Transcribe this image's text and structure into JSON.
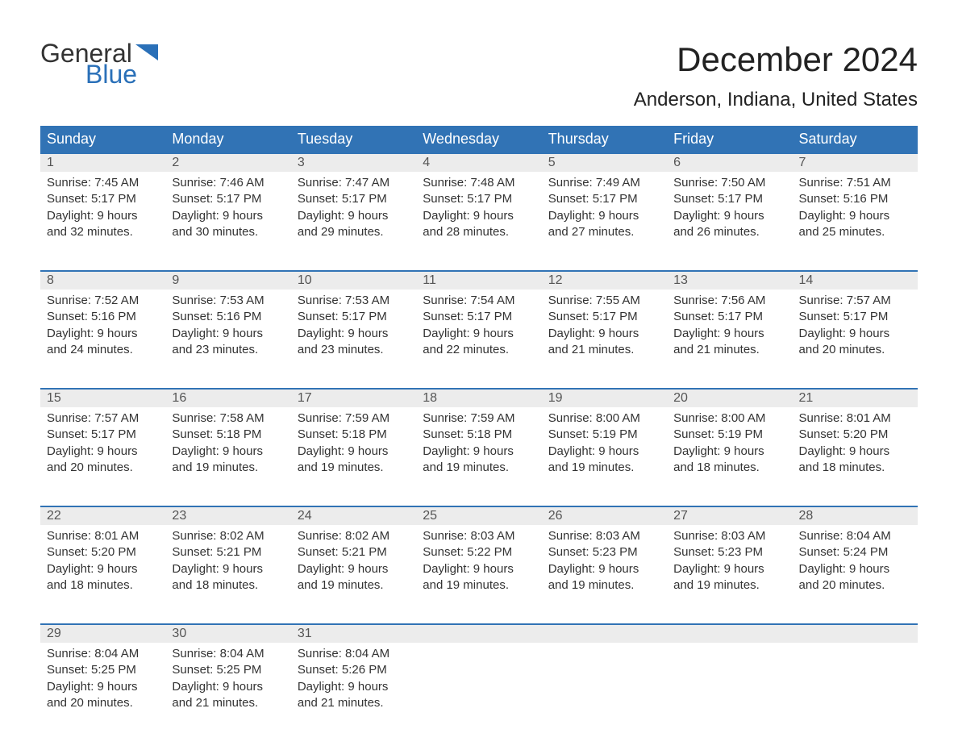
{
  "logo": {
    "text_top": "General",
    "text_bottom": "Blue",
    "flag_color": "#2a70b8"
  },
  "title": "December 2024",
  "location": "Anderson, Indiana, United States",
  "colors": {
    "header_bg": "#3173b5",
    "header_text": "#ffffff",
    "daynum_bg": "#ececec",
    "daynum_border": "#3173b5",
    "body_text": "#333333",
    "page_bg": "#ffffff",
    "logo_blue": "#2a70b8"
  },
  "typography": {
    "title_fontsize": 42,
    "location_fontsize": 24,
    "header_fontsize": 18,
    "daynum_fontsize": 16,
    "body_fontsize": 15
  },
  "day_headers": [
    "Sunday",
    "Monday",
    "Tuesday",
    "Wednesday",
    "Thursday",
    "Friday",
    "Saturday"
  ],
  "weeks": [
    [
      {
        "n": "1",
        "sr": "Sunrise: 7:45 AM",
        "ss": "Sunset: 5:17 PM",
        "dl1": "Daylight: 9 hours",
        "dl2": "and 32 minutes."
      },
      {
        "n": "2",
        "sr": "Sunrise: 7:46 AM",
        "ss": "Sunset: 5:17 PM",
        "dl1": "Daylight: 9 hours",
        "dl2": "and 30 minutes."
      },
      {
        "n": "3",
        "sr": "Sunrise: 7:47 AM",
        "ss": "Sunset: 5:17 PM",
        "dl1": "Daylight: 9 hours",
        "dl2": "and 29 minutes."
      },
      {
        "n": "4",
        "sr": "Sunrise: 7:48 AM",
        "ss": "Sunset: 5:17 PM",
        "dl1": "Daylight: 9 hours",
        "dl2": "and 28 minutes."
      },
      {
        "n": "5",
        "sr": "Sunrise: 7:49 AM",
        "ss": "Sunset: 5:17 PM",
        "dl1": "Daylight: 9 hours",
        "dl2": "and 27 minutes."
      },
      {
        "n": "6",
        "sr": "Sunrise: 7:50 AM",
        "ss": "Sunset: 5:17 PM",
        "dl1": "Daylight: 9 hours",
        "dl2": "and 26 minutes."
      },
      {
        "n": "7",
        "sr": "Sunrise: 7:51 AM",
        "ss": "Sunset: 5:16 PM",
        "dl1": "Daylight: 9 hours",
        "dl2": "and 25 minutes."
      }
    ],
    [
      {
        "n": "8",
        "sr": "Sunrise: 7:52 AM",
        "ss": "Sunset: 5:16 PM",
        "dl1": "Daylight: 9 hours",
        "dl2": "and 24 minutes."
      },
      {
        "n": "9",
        "sr": "Sunrise: 7:53 AM",
        "ss": "Sunset: 5:16 PM",
        "dl1": "Daylight: 9 hours",
        "dl2": "and 23 minutes."
      },
      {
        "n": "10",
        "sr": "Sunrise: 7:53 AM",
        "ss": "Sunset: 5:17 PM",
        "dl1": "Daylight: 9 hours",
        "dl2": "and 23 minutes."
      },
      {
        "n": "11",
        "sr": "Sunrise: 7:54 AM",
        "ss": "Sunset: 5:17 PM",
        "dl1": "Daylight: 9 hours",
        "dl2": "and 22 minutes."
      },
      {
        "n": "12",
        "sr": "Sunrise: 7:55 AM",
        "ss": "Sunset: 5:17 PM",
        "dl1": "Daylight: 9 hours",
        "dl2": "and 21 minutes."
      },
      {
        "n": "13",
        "sr": "Sunrise: 7:56 AM",
        "ss": "Sunset: 5:17 PM",
        "dl1": "Daylight: 9 hours",
        "dl2": "and 21 minutes."
      },
      {
        "n": "14",
        "sr": "Sunrise: 7:57 AM",
        "ss": "Sunset: 5:17 PM",
        "dl1": "Daylight: 9 hours",
        "dl2": "and 20 minutes."
      }
    ],
    [
      {
        "n": "15",
        "sr": "Sunrise: 7:57 AM",
        "ss": "Sunset: 5:17 PM",
        "dl1": "Daylight: 9 hours",
        "dl2": "and 20 minutes."
      },
      {
        "n": "16",
        "sr": "Sunrise: 7:58 AM",
        "ss": "Sunset: 5:18 PM",
        "dl1": "Daylight: 9 hours",
        "dl2": "and 19 minutes."
      },
      {
        "n": "17",
        "sr": "Sunrise: 7:59 AM",
        "ss": "Sunset: 5:18 PM",
        "dl1": "Daylight: 9 hours",
        "dl2": "and 19 minutes."
      },
      {
        "n": "18",
        "sr": "Sunrise: 7:59 AM",
        "ss": "Sunset: 5:18 PM",
        "dl1": "Daylight: 9 hours",
        "dl2": "and 19 minutes."
      },
      {
        "n": "19",
        "sr": "Sunrise: 8:00 AM",
        "ss": "Sunset: 5:19 PM",
        "dl1": "Daylight: 9 hours",
        "dl2": "and 19 minutes."
      },
      {
        "n": "20",
        "sr": "Sunrise: 8:00 AM",
        "ss": "Sunset: 5:19 PM",
        "dl1": "Daylight: 9 hours",
        "dl2": "and 18 minutes."
      },
      {
        "n": "21",
        "sr": "Sunrise: 8:01 AM",
        "ss": "Sunset: 5:20 PM",
        "dl1": "Daylight: 9 hours",
        "dl2": "and 18 minutes."
      }
    ],
    [
      {
        "n": "22",
        "sr": "Sunrise: 8:01 AM",
        "ss": "Sunset: 5:20 PM",
        "dl1": "Daylight: 9 hours",
        "dl2": "and 18 minutes."
      },
      {
        "n": "23",
        "sr": "Sunrise: 8:02 AM",
        "ss": "Sunset: 5:21 PM",
        "dl1": "Daylight: 9 hours",
        "dl2": "and 18 minutes."
      },
      {
        "n": "24",
        "sr": "Sunrise: 8:02 AM",
        "ss": "Sunset: 5:21 PM",
        "dl1": "Daylight: 9 hours",
        "dl2": "and 19 minutes."
      },
      {
        "n": "25",
        "sr": "Sunrise: 8:03 AM",
        "ss": "Sunset: 5:22 PM",
        "dl1": "Daylight: 9 hours",
        "dl2": "and 19 minutes."
      },
      {
        "n": "26",
        "sr": "Sunrise: 8:03 AM",
        "ss": "Sunset: 5:23 PM",
        "dl1": "Daylight: 9 hours",
        "dl2": "and 19 minutes."
      },
      {
        "n": "27",
        "sr": "Sunrise: 8:03 AM",
        "ss": "Sunset: 5:23 PM",
        "dl1": "Daylight: 9 hours",
        "dl2": "and 19 minutes."
      },
      {
        "n": "28",
        "sr": "Sunrise: 8:04 AM",
        "ss": "Sunset: 5:24 PM",
        "dl1": "Daylight: 9 hours",
        "dl2": "and 20 minutes."
      }
    ],
    [
      {
        "n": "29",
        "sr": "Sunrise: 8:04 AM",
        "ss": "Sunset: 5:25 PM",
        "dl1": "Daylight: 9 hours",
        "dl2": "and 20 minutes."
      },
      {
        "n": "30",
        "sr": "Sunrise: 8:04 AM",
        "ss": "Sunset: 5:25 PM",
        "dl1": "Daylight: 9 hours",
        "dl2": "and 21 minutes."
      },
      {
        "n": "31",
        "sr": "Sunrise: 8:04 AM",
        "ss": "Sunset: 5:26 PM",
        "dl1": "Daylight: 9 hours",
        "dl2": "and 21 minutes."
      },
      null,
      null,
      null,
      null
    ]
  ]
}
